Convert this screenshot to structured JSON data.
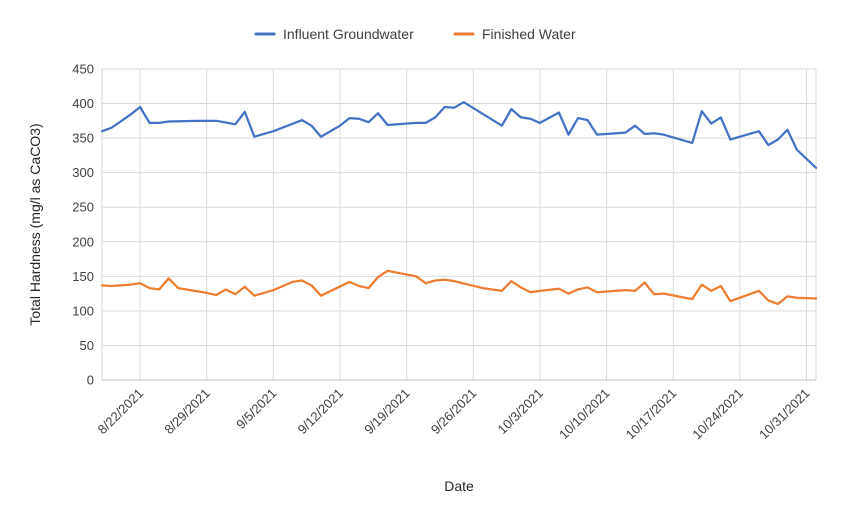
{
  "chart_data": {
    "type": "line",
    "xlabel": "Date",
    "ylabel": "Total Hardness (mg/l as CaCO3)",
    "ylim": [
      0,
      450
    ],
    "yticks": [
      0,
      50,
      100,
      150,
      200,
      250,
      300,
      350,
      400,
      450
    ],
    "xlim": [
      "2021-08-18",
      "2021-11-01"
    ],
    "xticks": [
      {
        "date": "2021-08-22",
        "label": "8/22/2021"
      },
      {
        "date": "2021-08-29",
        "label": "8/29/2021"
      },
      {
        "date": "2021-09-05",
        "label": "9/5/2021"
      },
      {
        "date": "2021-09-12",
        "label": "9/12/2021"
      },
      {
        "date": "2021-09-19",
        "label": "9/19/2021"
      },
      {
        "date": "2021-09-26",
        "label": "9/26/2021"
      },
      {
        "date": "2021-10-03",
        "label": "10/3/2021"
      },
      {
        "date": "2021-10-10",
        "label": "10/10/2021"
      },
      {
        "date": "2021-10-17",
        "label": "10/17/2021"
      },
      {
        "date": "2021-10-24",
        "label": "10/24/2021"
      },
      {
        "date": "2021-10-31",
        "label": "10/31/2021"
      }
    ],
    "grid": true,
    "legend_position": "top-center",
    "series": [
      {
        "name": "Influent Groundwater",
        "color": "#4472C4",
        "points": [
          [
            "2021-08-18",
            360
          ],
          [
            "2021-08-19",
            365
          ],
          [
            "2021-08-21",
            384
          ],
          [
            "2021-08-22",
            395
          ],
          [
            "2021-08-23",
            372
          ],
          [
            "2021-08-24",
            372
          ],
          [
            "2021-08-25",
            374
          ],
          [
            "2021-08-28",
            375
          ],
          [
            "2021-08-29",
            375
          ],
          [
            "2021-08-30",
            375
          ],
          [
            "2021-09-01",
            370
          ],
          [
            "2021-09-02",
            388
          ],
          [
            "2021-09-03",
            352
          ],
          [
            "2021-09-05",
            360
          ],
          [
            "2021-09-08",
            376
          ],
          [
            "2021-09-09",
            368
          ],
          [
            "2021-09-10",
            352
          ],
          [
            "2021-09-12",
            368
          ],
          [
            "2021-09-13",
            379
          ],
          [
            "2021-09-14",
            378
          ],
          [
            "2021-09-15",
            373
          ],
          [
            "2021-09-16",
            386
          ],
          [
            "2021-09-17",
            369
          ],
          [
            "2021-09-20",
            372
          ],
          [
            "2021-09-21",
            372
          ],
          [
            "2021-09-22",
            380
          ],
          [
            "2021-09-23",
            395
          ],
          [
            "2021-09-24",
            394
          ],
          [
            "2021-09-25",
            402
          ],
          [
            "2021-09-29",
            368
          ],
          [
            "2021-09-30",
            392
          ],
          [
            "2021-10-01",
            380
          ],
          [
            "2021-10-02",
            378
          ],
          [
            "2021-10-03",
            372
          ],
          [
            "2021-10-05",
            387
          ],
          [
            "2021-10-06",
            355
          ],
          [
            "2021-10-07",
            379
          ],
          [
            "2021-10-08",
            376
          ],
          [
            "2021-10-09",
            355
          ],
          [
            "2021-10-12",
            358
          ],
          [
            "2021-10-13",
            368
          ],
          [
            "2021-10-14",
            356
          ],
          [
            "2021-10-15",
            357
          ],
          [
            "2021-10-16",
            355
          ],
          [
            "2021-10-18",
            347
          ],
          [
            "2021-10-19",
            343
          ],
          [
            "2021-10-20",
            389
          ],
          [
            "2021-10-21",
            371
          ],
          [
            "2021-10-22",
            380
          ],
          [
            "2021-10-23",
            348
          ],
          [
            "2021-10-26",
            360
          ],
          [
            "2021-10-27",
            340
          ],
          [
            "2021-10-28",
            348
          ],
          [
            "2021-10-29",
            362
          ],
          [
            "2021-10-30",
            333
          ],
          [
            "2021-11-01",
            307
          ]
        ]
      },
      {
        "name": "Finished Water",
        "color": "#ED7D31",
        "points": [
          [
            "2021-08-18",
            137
          ],
          [
            "2021-08-19",
            136
          ],
          [
            "2021-08-21",
            138
          ],
          [
            "2021-08-22",
            140
          ],
          [
            "2021-08-23",
            133
          ],
          [
            "2021-08-24",
            131
          ],
          [
            "2021-08-25",
            147
          ],
          [
            "2021-08-26",
            133
          ],
          [
            "2021-08-29",
            126
          ],
          [
            "2021-08-30",
            123
          ],
          [
            "2021-08-31",
            131
          ],
          [
            "2021-09-01",
            124
          ],
          [
            "2021-09-02",
            135
          ],
          [
            "2021-09-03",
            122
          ],
          [
            "2021-09-05",
            130
          ],
          [
            "2021-09-07",
            142
          ],
          [
            "2021-09-08",
            144
          ],
          [
            "2021-09-09",
            137
          ],
          [
            "2021-09-10",
            122
          ],
          [
            "2021-09-13",
            142
          ],
          [
            "2021-09-14",
            136
          ],
          [
            "2021-09-15",
            133
          ],
          [
            "2021-09-16",
            149
          ],
          [
            "2021-09-17",
            158
          ],
          [
            "2021-09-20",
            150
          ],
          [
            "2021-09-21",
            140
          ],
          [
            "2021-09-22",
            144
          ],
          [
            "2021-09-23",
            145
          ],
          [
            "2021-09-24",
            143
          ],
          [
            "2021-09-27",
            133
          ],
          [
            "2021-09-29",
            129
          ],
          [
            "2021-09-30",
            143
          ],
          [
            "2021-10-01",
            134
          ],
          [
            "2021-10-02",
            127
          ],
          [
            "2021-10-03",
            129
          ],
          [
            "2021-10-05",
            132
          ],
          [
            "2021-10-06",
            125
          ],
          [
            "2021-10-07",
            131
          ],
          [
            "2021-10-08",
            134
          ],
          [
            "2021-10-09",
            127
          ],
          [
            "2021-10-12",
            130
          ],
          [
            "2021-10-13",
            129
          ],
          [
            "2021-10-14",
            141
          ],
          [
            "2021-10-15",
            124
          ],
          [
            "2021-10-16",
            125
          ],
          [
            "2021-10-19",
            117
          ],
          [
            "2021-10-20",
            138
          ],
          [
            "2021-10-21",
            129
          ],
          [
            "2021-10-22",
            136
          ],
          [
            "2021-10-23",
            114
          ],
          [
            "2021-10-26",
            129
          ],
          [
            "2021-10-27",
            115
          ],
          [
            "2021-10-28",
            110
          ],
          [
            "2021-10-29",
            121
          ],
          [
            "2021-10-30",
            119
          ],
          [
            "2021-11-01",
            118
          ]
        ]
      }
    ]
  }
}
